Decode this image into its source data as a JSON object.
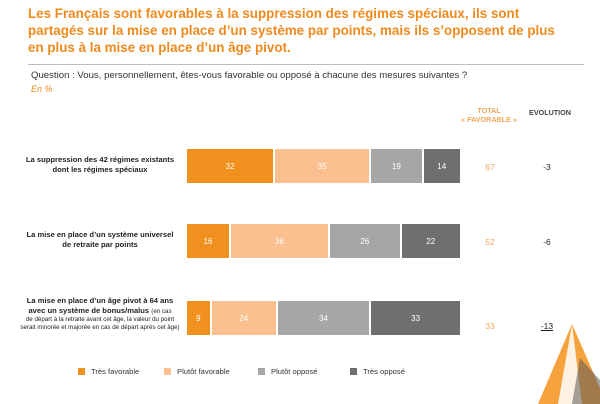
{
  "title": "Les Français sont favorables à la suppression des régimes spéciaux, ils sont partagés sur la mise en place d’un système par points, mais ils s’opposent de plus en plus à la mise en place d’un âge pivot.",
  "question": "Question : Vous, personnellement, êtes-vous favorable ou opposé à chacune des mesures suivantes ?",
  "unit": "En %",
  "columns": {
    "total_line1": "TOTAL",
    "total_line2": "« FAVORABLE »",
    "evolution": "EVOLUTION"
  },
  "rows": [
    {
      "label_line1": "La suppression des 42 régimes existants",
      "label_line2": "dont les régimes spéciaux",
      "total": "67",
      "evolution": "-3"
    },
    {
      "label_line1": "La mise en place d’un système universel",
      "label_line2": "de retraite par points",
      "total": "52",
      "evolution": "-6"
    },
    {
      "label_line1": "La mise en place d’un âge pivot à 64 ans",
      "label_line2": "avec un système de bonus/malus",
      "label_note_a": "(en cas",
      "label_note_b": "de départ à la retraite avant cet âge, la valeur du point serait minorée et majorée en cas de départ après cet âge)",
      "total": "33",
      "evolution": "-13"
    }
  ],
  "chart_data": {
    "type": "bar",
    "orientation": "horizontal",
    "stacked": true,
    "title": "Les Français sont favorables à la suppression des régimes spéciaux, ils sont partagés sur la mise en place d’un système par points, mais ils s’opposent de plus en plus à la mise en place d’un âge pivot.",
    "xlabel": "",
    "ylabel": "",
    "unit": "En %",
    "categories": [
      "La suppression des 42 régimes existants dont les régimes spéciaux",
      "La mise en place d’un système universel de retraite par points",
      "La mise en place d’un âge pivot à 64 ans avec un système de bonus/malus"
    ],
    "series": [
      {
        "name": "Très favorable",
        "color": "#f0901e",
        "values": [
          32,
          16,
          9
        ]
      },
      {
        "name": "Plutôt favorable",
        "color": "#fac08f",
        "values": [
          35,
          36,
          24
        ]
      },
      {
        "name": "Plutôt opposé",
        "color": "#a6a6a6",
        "values": [
          19,
          26,
          34
        ]
      },
      {
        "name": "Très opposé",
        "color": "#6f6f6f",
        "values": [
          14,
          22,
          33
        ]
      }
    ],
    "total_favorable": [
      67,
      52,
      33
    ],
    "evolution": [
      -3,
      -6,
      -13
    ],
    "legend_position": "bottom"
  }
}
